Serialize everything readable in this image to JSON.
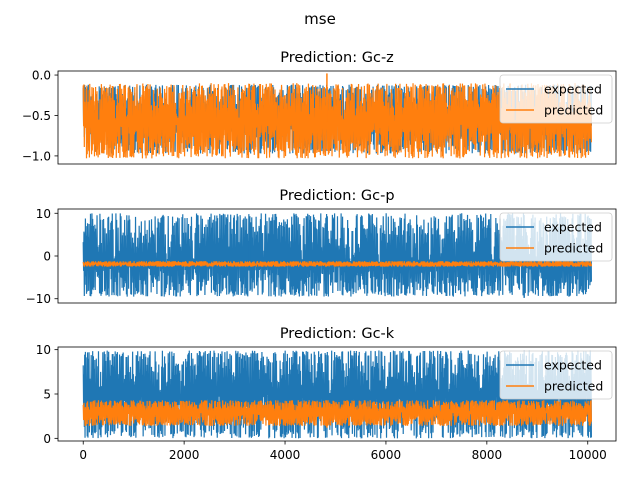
{
  "figure": {
    "suptitle": "mse"
  },
  "chart_data": [
    {
      "type": "line",
      "title": "Prediction: Gc-z",
      "xlim": [
        -500,
        10560
      ],
      "ylim": [
        -1.1,
        0.05
      ],
      "yticks": [
        0.0,
        -0.5,
        -1.0
      ],
      "ytick_labels": [
        "0.0",
        "−0.5",
        "−1.0"
      ],
      "xticks_visible": false,
      "legend": {
        "placement": "top-right",
        "entries": [
          "expected",
          "predicted"
        ]
      },
      "series": [
        {
          "name": "expected",
          "color": "#1f77b4",
          "n": 10072,
          "center": -0.55,
          "band": [
            -0.97,
            -0.12
          ],
          "spikes": []
        },
        {
          "name": "predicted",
          "color": "#ff7f0e",
          "n": 10072,
          "center": -0.58,
          "band": [
            -1.03,
            -0.1
          ],
          "spikes": [
            [
              4830,
              0.02
            ]
          ]
        }
      ]
    },
    {
      "type": "line",
      "title": "Prediction: Gc-p",
      "xlim": [
        -500,
        10560
      ],
      "ylim": [
        -11,
        11
      ],
      "yticks": [
        10,
        0,
        -10
      ],
      "ytick_labels": [
        "10",
        "0",
        "−10"
      ],
      "xticks_visible": false,
      "legend": {
        "placement": "top-right",
        "entries": [
          "expected",
          "predicted"
        ]
      },
      "series": [
        {
          "name": "expected",
          "color": "#1f77b4",
          "n": 10072,
          "center": -1.8,
          "band": [
            -9.5,
            10.0
          ],
          "spikes": [
            [
              8450,
              9.8
            ],
            [
              3300,
              9.3
            ],
            [
              8740,
              -9.8
            ]
          ]
        },
        {
          "name": "predicted",
          "color": "#ff7f0e",
          "n": 10072,
          "center": -1.9,
          "band": [
            -2.5,
            -1.2
          ],
          "spikes": []
        }
      ]
    },
    {
      "type": "line",
      "title": "Prediction: Gc-k",
      "xlim": [
        -500,
        10560
      ],
      "ylim": [
        -0.3,
        10.3
      ],
      "yticks": [
        10,
        5,
        0
      ],
      "ytick_labels": [
        "10",
        "5",
        "0"
      ],
      "xticks": [
        0,
        2000,
        4000,
        6000,
        8000,
        10000
      ],
      "xtick_labels": [
        "0",
        "2000",
        "4000",
        "6000",
        "8000",
        "10000"
      ],
      "xticks_visible": true,
      "legend": {
        "placement": "top-right",
        "entries": [
          "expected",
          "predicted"
        ]
      },
      "series": [
        {
          "name": "expected",
          "color": "#1f77b4",
          "n": 10072,
          "center": 5.0,
          "band": [
            0.0,
            9.9
          ],
          "spikes": []
        },
        {
          "name": "predicted",
          "color": "#ff7f0e",
          "n": 10072,
          "center": 3.0,
          "band": [
            1.4,
            4.3
          ],
          "spikes": [
            [
              4830,
              1.2
            ]
          ]
        }
      ]
    }
  ]
}
